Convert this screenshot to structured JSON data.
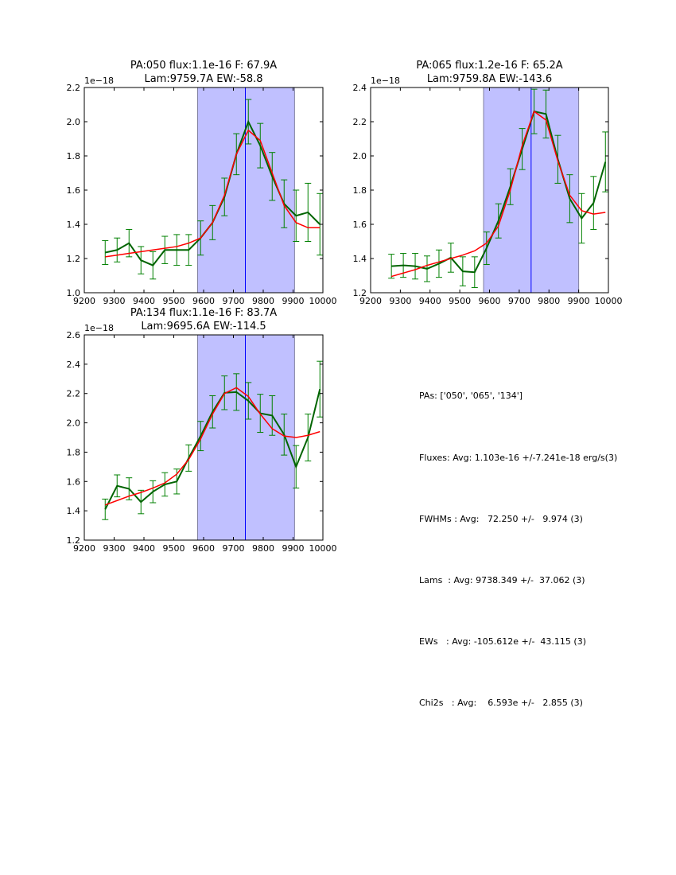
{
  "chart_data": [
    {
      "type": "line",
      "title": [
        "PA:050 flux:1.1e-16 F: 67.9A",
        "Lam:9759.7A EW:-58.8"
      ],
      "offset_label": "1e−18",
      "xlim": [
        9200,
        10000
      ],
      "ylim": [
        1.0,
        2.2
      ],
      "xticks": [
        9200,
        9300,
        9400,
        9500,
        9600,
        9700,
        9800,
        9900,
        10000
      ],
      "yticks": [
        "1.0",
        "1.2",
        "1.4",
        "1.6",
        "1.8",
        "2.0",
        "2.2"
      ],
      "shaded_region": [
        9580,
        9905
      ],
      "vline": 9740,
      "x": [
        9270,
        9310,
        9350,
        9390,
        9430,
        9470,
        9510,
        9550,
        9590,
        9630,
        9670,
        9710,
        9750,
        9790,
        9830,
        9870,
        9910,
        9950,
        9990
      ],
      "series": [
        {
          "name": "data",
          "color": "#006400",
          "values": [
            1.235,
            1.25,
            1.29,
            1.19,
            1.16,
            1.25,
            1.25,
            1.25,
            1.32,
            1.41,
            1.56,
            1.81,
            2.0,
            1.86,
            1.68,
            1.52,
            1.45,
            1.47,
            1.4
          ],
          "errors": [
            0.07,
            0.07,
            0.08,
            0.08,
            0.08,
            0.08,
            0.09,
            0.09,
            0.1,
            0.1,
            0.11,
            0.12,
            0.13,
            0.13,
            0.14,
            0.14,
            0.15,
            0.17,
            0.18
          ]
        },
        {
          "name": "model",
          "color": "#ff0000",
          "values": [
            1.21,
            1.22,
            1.23,
            1.24,
            1.25,
            1.26,
            1.27,
            1.29,
            1.32,
            1.41,
            1.57,
            1.81,
            1.95,
            1.89,
            1.7,
            1.51,
            1.41,
            1.38,
            1.38
          ]
        }
      ]
    },
    {
      "type": "line",
      "title": [
        "PA:065 flux:1.2e-16 F: 65.2A",
        "Lam:9759.8A EW:-143.6"
      ],
      "offset_label": "1e−18",
      "xlim": [
        9200,
        10000
      ],
      "ylim": [
        1.2,
        2.4
      ],
      "xticks": [
        9200,
        9300,
        9400,
        9500,
        9600,
        9700,
        9800,
        9900,
        10000
      ],
      "yticks": [
        "1.2",
        "1.4",
        "1.6",
        "1.8",
        "2.0",
        "2.2",
        "2.4"
      ],
      "shaded_region": [
        9580,
        9900
      ],
      "vline": 9740,
      "x": [
        9270,
        9310,
        9350,
        9390,
        9430,
        9470,
        9510,
        9550,
        9590,
        9630,
        9670,
        9710,
        9750,
        9790,
        9830,
        9870,
        9910,
        9950,
        9990
      ],
      "series": [
        {
          "name": "data",
          "color": "#006400",
          "values": [
            1.355,
            1.36,
            1.355,
            1.34,
            1.37,
            1.405,
            1.325,
            1.32,
            1.46,
            1.62,
            1.82,
            2.04,
            2.26,
            2.245,
            1.98,
            1.75,
            1.635,
            1.725,
            1.965
          ],
          "errors": [
            0.07,
            0.07,
            0.075,
            0.075,
            0.08,
            0.085,
            0.085,
            0.09,
            0.095,
            0.1,
            0.105,
            0.12,
            0.13,
            0.14,
            0.14,
            0.14,
            0.145,
            0.155,
            0.175
          ]
        },
        {
          "name": "model",
          "color": "#ff0000",
          "values": [
            1.295,
            1.315,
            1.335,
            1.36,
            1.38,
            1.4,
            1.42,
            1.445,
            1.49,
            1.59,
            1.8,
            2.06,
            2.26,
            2.21,
            1.97,
            1.77,
            1.68,
            1.66,
            1.67
          ]
        }
      ]
    },
    {
      "type": "line",
      "title": [
        "PA:134 flux:1.1e-16 F: 83.7A",
        "Lam:9695.6A EW:-114.5"
      ],
      "offset_label": "1e−18",
      "xlim": [
        9200,
        10000
      ],
      "ylim": [
        1.2,
        2.6
      ],
      "xticks": [
        9200,
        9300,
        9400,
        9500,
        9600,
        9700,
        9800,
        9900,
        10000
      ],
      "yticks": [
        "1.2",
        "1.4",
        "1.6",
        "1.8",
        "2.0",
        "2.2",
        "2.4",
        "2.6"
      ],
      "shaded_region": [
        9580,
        9905
      ],
      "vline": 9740,
      "x": [
        9270,
        9310,
        9350,
        9390,
        9430,
        9470,
        9510,
        9550,
        9590,
        9630,
        9670,
        9710,
        9750,
        9790,
        9830,
        9870,
        9910,
        9950,
        9990
      ],
      "series": [
        {
          "name": "data",
          "color": "#006400",
          "values": [
            1.41,
            1.57,
            1.55,
            1.46,
            1.53,
            1.58,
            1.6,
            1.76,
            1.91,
            2.075,
            2.205,
            2.21,
            2.15,
            2.065,
            2.05,
            1.92,
            1.7,
            1.9,
            2.23
          ],
          "errors": [
            0.07,
            0.075,
            0.075,
            0.08,
            0.075,
            0.08,
            0.085,
            0.09,
            0.1,
            0.11,
            0.115,
            0.125,
            0.125,
            0.13,
            0.135,
            0.14,
            0.145,
            0.16,
            0.19
          ]
        },
        {
          "name": "model",
          "color": "#ff0000",
          "values": [
            1.44,
            1.47,
            1.5,
            1.525,
            1.555,
            1.59,
            1.65,
            1.75,
            1.89,
            2.06,
            2.2,
            2.24,
            2.18,
            2.06,
            1.96,
            1.91,
            1.9,
            1.915,
            1.94
          ]
        }
      ]
    }
  ],
  "colors": {
    "shade": "#c0c0ff",
    "shade_edge": "#8080a0",
    "vline": "#0000ff",
    "errorbar": "#008000"
  },
  "summary": {
    "pas": "PAs: ['050', '065', '134']",
    "fluxes": "Fluxes: Avg: 1.103e-16 +/-7.241e-18 erg/s(3)",
    "fwhms": "FWHMs : Avg:   72.250 +/-   9.974 (3)",
    "lams": "Lams  : Avg: 9738.349 +/-  37.062 (3)",
    "ews": "EWs   : Avg: -105.612e +/-  43.115 (3)",
    "chi2s": "Chi2s   : Avg:    6.593e +/-   2.855 (3)"
  }
}
